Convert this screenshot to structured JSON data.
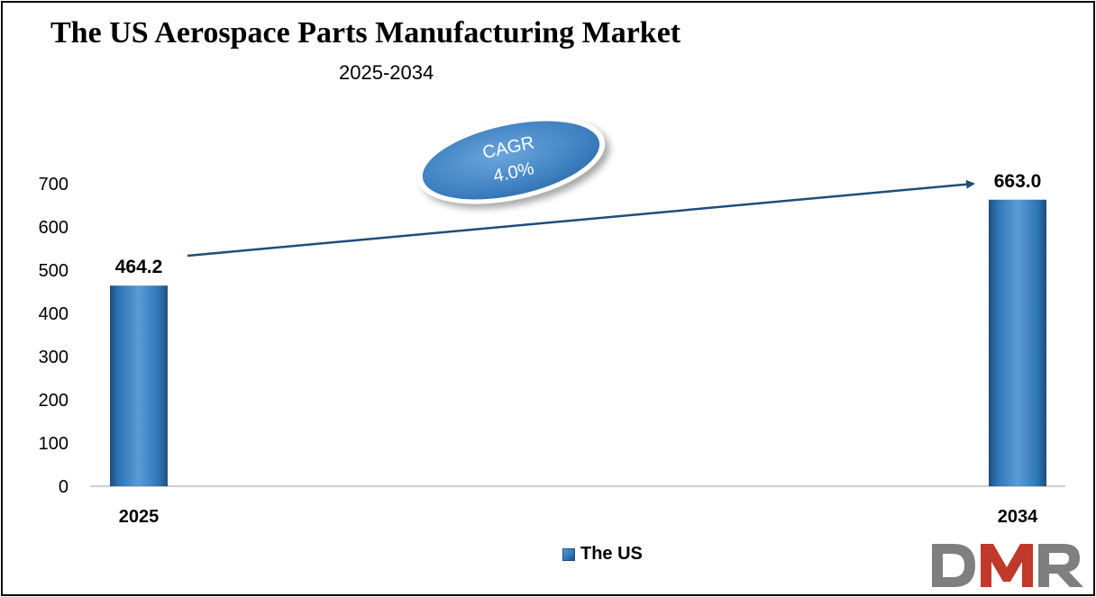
{
  "title": "The US Aerospace Parts Manufacturing Market",
  "subtitle": "2025-2034",
  "cagr": {
    "line1": "CAGR",
    "line2": "4.0%"
  },
  "legend": {
    "label": "The US"
  },
  "logo": {
    "text": "DMR"
  },
  "colors": {
    "bar": "#2e75b6",
    "bar_light": "#5b9bd5",
    "bar_dark": "#1f4e79",
    "arrow": "#1f4e79",
    "logo_grey": "#7f7f7f",
    "logo_red": "#c0392b"
  },
  "chart_data": {
    "type": "bar",
    "categories": [
      "2025",
      "2034"
    ],
    "series": [
      {
        "name": "The US",
        "values": [
          464.2,
          663.0
        ]
      }
    ],
    "data_labels": [
      "464.2",
      "663.0"
    ],
    "y_ticks": [
      0,
      100,
      200,
      300,
      400,
      500,
      600,
      700
    ],
    "ylim": [
      0,
      700
    ],
    "title": "The US Aerospace Parts Manufacturing Market",
    "subtitle": "2025-2034",
    "xlabel": "",
    "ylabel": "",
    "grid": false,
    "legend_position": "bottom-center"
  }
}
